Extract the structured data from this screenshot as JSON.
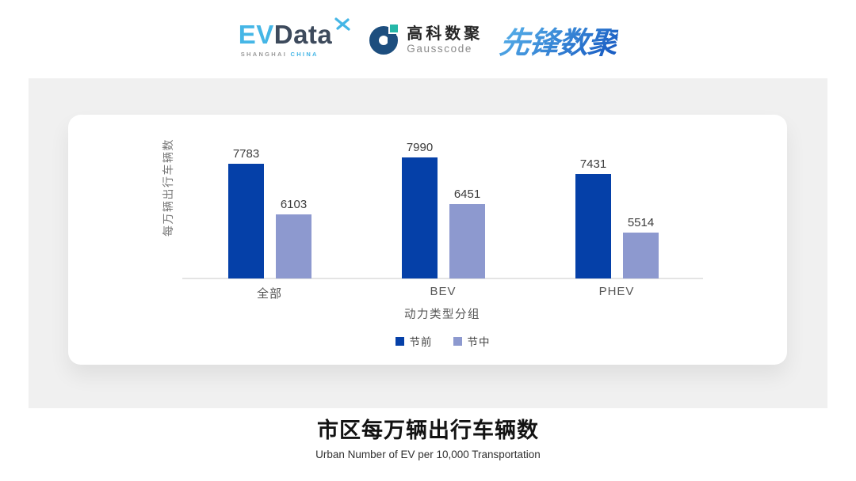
{
  "header": {
    "evdata": {
      "part1": "EV",
      "part2": "Data",
      "sub1": "SHANGHAI",
      "sub2": "CHINA"
    },
    "gausscode": {
      "cn": "高科数聚",
      "en": "Gausscode"
    },
    "pioneer": {
      "text": "先锋数聚"
    }
  },
  "chart_data": {
    "type": "bar",
    "title": "市区每万辆出行车辆数",
    "subtitle": "Urban Number of EV per 10,000 Transportation",
    "categories": [
      "全部",
      "BEV",
      "PHEV"
    ],
    "series": [
      {
        "name": "节前",
        "color": "#0540a8",
        "values": [
          7783,
          7990,
          7431
        ]
      },
      {
        "name": "节中",
        "color": "#8d99cf",
        "values": [
          6103,
          6451,
          5514
        ]
      }
    ],
    "xlabel": "动力类型分组",
    "ylabel": "每万辆出行车辆数",
    "ylim": [
      4000,
      8400
    ],
    "grid": false,
    "value_labels": true,
    "legend_position": "bottom"
  },
  "colors": {
    "panel": "#f0f0f0",
    "card": "#ffffff",
    "axis_line": "#e4e4e4",
    "evdata_blue": "#45b6e6",
    "evdata_slate": "#3d4a5c",
    "gausscode_navy": "#1d4e7e",
    "gausscode_teal": "#25b7a8",
    "pioneer_blue_light": "#55aee8",
    "pioneer_blue_dark": "#1b5fc4"
  }
}
